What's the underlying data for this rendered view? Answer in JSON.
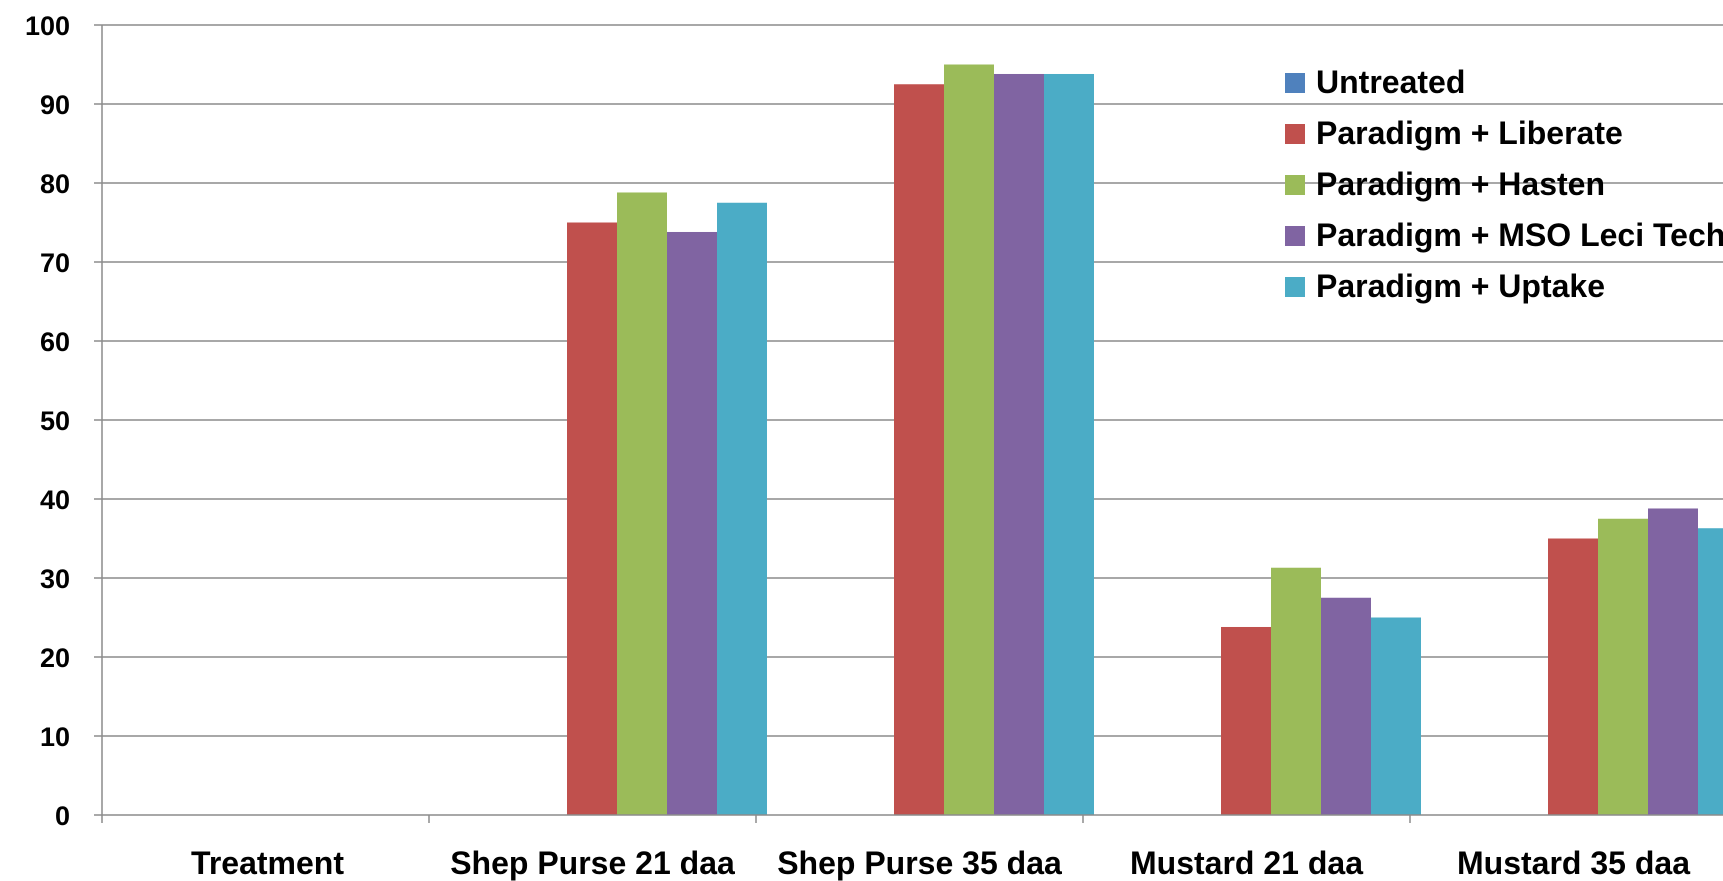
{
  "chart_data": {
    "type": "bar",
    "categories": [
      "Treatment",
      "Shep Purse 21 daa",
      "Shep Purse 35 daa",
      "Mustard 21 daa",
      "Mustard 35 daa"
    ],
    "series": [
      {
        "name": "Untreated",
        "color": "#4F81BD",
        "values": [
          0,
          0,
          0,
          0,
          0
        ]
      },
      {
        "name": "Paradigm + Liberate",
        "color": "#C0504D",
        "values": [
          0,
          75,
          92.5,
          23.8,
          35
        ]
      },
      {
        "name": "Paradigm + Hasten",
        "color": "#9BBB59",
        "values": [
          0,
          78.8,
          95,
          31.3,
          37.5
        ]
      },
      {
        "name": "Paradigm + MSO Leci Tech",
        "color": "#8064A2",
        "values": [
          0,
          73.8,
          93.8,
          27.5,
          38.8
        ]
      },
      {
        "name": "Paradigm + Uptake",
        "color": "#4BACC6",
        "values": [
          0,
          77.5,
          93.8,
          25,
          36.3
        ]
      }
    ],
    "yticks": [
      "0",
      "10",
      "20",
      "30",
      "40",
      "50",
      "60",
      "70",
      "80",
      "90",
      "100"
    ],
    "ylim": [
      0,
      100
    ],
    "title": "",
    "xlabel": "",
    "ylabel": "",
    "grid": true,
    "legend_position": "top-right"
  }
}
